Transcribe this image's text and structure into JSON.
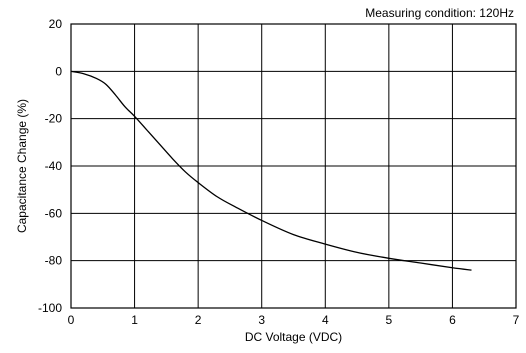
{
  "chart_data": {
    "type": "line",
    "title": "",
    "annotation": "Measuring condition: 120Hz",
    "xlabel": "DC Voltage (VDC)",
    "ylabel": "Capacitance Change (%)",
    "xlim": [
      0,
      7
    ],
    "ylim": [
      -100,
      20
    ],
    "xticks": [
      0,
      1,
      2,
      3,
      4,
      5,
      6,
      7
    ],
    "yticks": [
      20,
      0,
      -20,
      -40,
      -60,
      -80,
      -100
    ],
    "grid": true,
    "series": [
      {
        "x": [
          0,
          0.2,
          0.4,
          0.55,
          0.7,
          0.85,
          1.0,
          1.2,
          1.4,
          1.6,
          1.8,
          2.0,
          2.3,
          2.6,
          3.0,
          3.5,
          4.0,
          4.5,
          5.0,
          5.5,
          6.0,
          6.3
        ],
        "y": [
          0,
          -1,
          -3,
          -5.5,
          -10,
          -15,
          -19,
          -25,
          -31,
          -37,
          -42.5,
          -47,
          -53,
          -57.5,
          -63,
          -69,
          -73,
          -76.5,
          -79,
          -81,
          -83,
          -84
        ]
      }
    ]
  }
}
